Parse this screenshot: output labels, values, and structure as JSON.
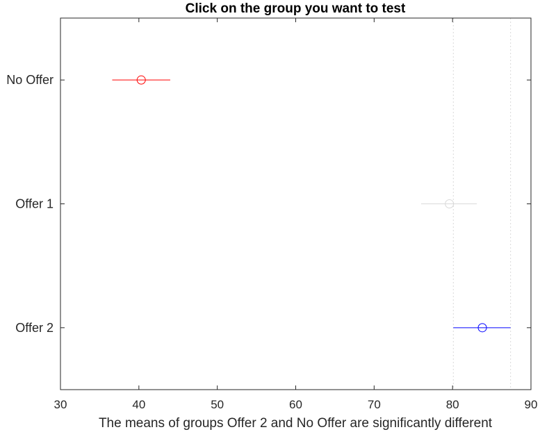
{
  "chart_data": {
    "type": "scatter",
    "title": "Click on the group you want to test",
    "xlabel": "The means of groups Offer 2 and No Offer are significantly different",
    "ylabel": "",
    "xlim": [
      30,
      90
    ],
    "xticks": [
      30,
      40,
      50,
      60,
      70,
      80,
      90
    ],
    "grid": false,
    "groups": [
      {
        "label": "No Offer",
        "mean": 40.3,
        "lower": 36.6,
        "upper": 44.0,
        "color": "#ff0000"
      },
      {
        "label": "Offer 1",
        "mean": 79.6,
        "lower": 76.0,
        "upper": 83.1,
        "color": "#d9d9d9"
      },
      {
        "label": "Offer 2",
        "mean": 83.8,
        "lower": 80.1,
        "upper": 87.4,
        "color": "#0000ff"
      }
    ],
    "reference_lines": [
      80.1,
      87.4
    ],
    "colors": {
      "selected": "#0000ff",
      "significant": "#ff0000",
      "not_significant": "#d9d9d9",
      "reference": "#d9d9d9"
    }
  }
}
